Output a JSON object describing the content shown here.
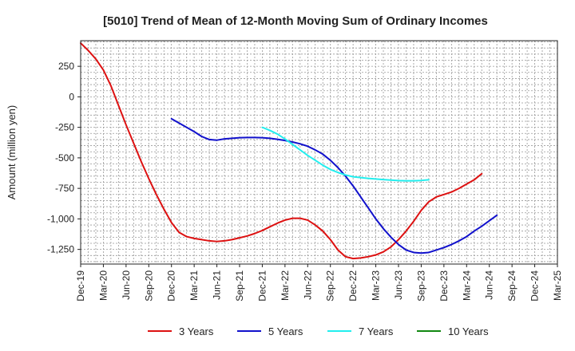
{
  "chart_data": {
    "type": "line",
    "title": "[5010]  Trend of Mean of 12-Month Moving Sum of Ordinary Incomes",
    "xlabel": "",
    "ylabel": "Amount (million yen)",
    "ylim": [
      -1370,
      460
    ],
    "yticks": [
      250,
      0,
      -250,
      -500,
      -750,
      -1000,
      -1250
    ],
    "ytick_labels": [
      "250",
      "0",
      "-250",
      "-500",
      "-750",
      "-1,000",
      "-1,250"
    ],
    "xtick_labels": [
      "Dec-19",
      "Mar-20",
      "Jun-20",
      "Sep-20",
      "Dec-20",
      "Mar-21",
      "Jun-21",
      "Sep-21",
      "Dec-21",
      "Mar-22",
      "Jun-22",
      "Sep-22",
      "Dec-22",
      "Mar-23",
      "Jun-23",
      "Sep-23",
      "Dec-23",
      "Mar-24",
      "Jun-24",
      "Sep-24",
      "Dec-24",
      "Mar-25"
    ],
    "grid": true,
    "legend_position": "bottom",
    "series": [
      {
        "name": "3 Years",
        "color": "#dd1111",
        "points": [
          [
            0,
            440
          ],
          [
            1,
            380
          ],
          [
            2,
            310
          ],
          [
            3,
            220
          ],
          [
            4,
            90
          ],
          [
            5,
            -70
          ],
          [
            6,
            -230
          ],
          [
            7,
            -380
          ],
          [
            8,
            -530
          ],
          [
            9,
            -670
          ],
          [
            10,
            -800
          ],
          [
            11,
            -920
          ],
          [
            12,
            -1030
          ],
          [
            13,
            -1110
          ],
          [
            14,
            -1145
          ],
          [
            15,
            -1160
          ],
          [
            16,
            -1170
          ],
          [
            17,
            -1180
          ],
          [
            18,
            -1185
          ],
          [
            19,
            -1180
          ],
          [
            20,
            -1170
          ],
          [
            21,
            -1155
          ],
          [
            22,
            -1140
          ],
          [
            23,
            -1120
          ],
          [
            24,
            -1095
          ],
          [
            25,
            -1065
          ],
          [
            26,
            -1035
          ],
          [
            27,
            -1010
          ],
          [
            28,
            -995
          ],
          [
            29,
            -995
          ],
          [
            30,
            -1010
          ],
          [
            31,
            -1050
          ],
          [
            32,
            -1100
          ],
          [
            33,
            -1170
          ],
          [
            34,
            -1255
          ],
          [
            35,
            -1310
          ],
          [
            36,
            -1325
          ],
          [
            37,
            -1320
          ],
          [
            38,
            -1310
          ],
          [
            39,
            -1295
          ],
          [
            40,
            -1270
          ],
          [
            41,
            -1230
          ],
          [
            42,
            -1170
          ],
          [
            43,
            -1100
          ],
          [
            44,
            -1020
          ],
          [
            45,
            -930
          ],
          [
            46,
            -860
          ],
          [
            47,
            -820
          ],
          [
            48,
            -800
          ],
          [
            49,
            -780
          ],
          [
            50,
            -750
          ],
          [
            51,
            -715
          ],
          [
            52,
            -680
          ],
          [
            53,
            -630
          ]
        ]
      },
      {
        "name": "5 Years",
        "color": "#1111cc",
        "points": [
          [
            12,
            -180
          ],
          [
            13,
            -215
          ],
          [
            14,
            -250
          ],
          [
            15,
            -285
          ],
          [
            16,
            -325
          ],
          [
            17,
            -350
          ],
          [
            18,
            -355
          ],
          [
            19,
            -345
          ],
          [
            20,
            -340
          ],
          [
            21,
            -335
          ],
          [
            22,
            -333
          ],
          [
            23,
            -333
          ],
          [
            24,
            -335
          ],
          [
            25,
            -340
          ],
          [
            26,
            -348
          ],
          [
            27,
            -358
          ],
          [
            28,
            -370
          ],
          [
            29,
            -385
          ],
          [
            30,
            -405
          ],
          [
            31,
            -435
          ],
          [
            32,
            -470
          ],
          [
            33,
            -520
          ],
          [
            34,
            -580
          ],
          [
            35,
            -650
          ],
          [
            36,
            -730
          ],
          [
            37,
            -820
          ],
          [
            38,
            -910
          ],
          [
            39,
            -1000
          ],
          [
            40,
            -1080
          ],
          [
            41,
            -1150
          ],
          [
            42,
            -1210
          ],
          [
            43,
            -1255
          ],
          [
            44,
            -1275
          ],
          [
            45,
            -1280
          ],
          [
            46,
            -1275
          ],
          [
            47,
            -1255
          ],
          [
            48,
            -1235
          ],
          [
            49,
            -1210
          ],
          [
            50,
            -1180
          ],
          [
            51,
            -1145
          ],
          [
            52,
            -1100
          ],
          [
            53,
            -1060
          ],
          [
            54,
            -1015
          ],
          [
            55,
            -970
          ]
        ]
      },
      {
        "name": "7 Years",
        "color": "#22eeee",
        "points": [
          [
            24,
            -250
          ],
          [
            25,
            -275
          ],
          [
            26,
            -305
          ],
          [
            27,
            -345
          ],
          [
            28,
            -390
          ],
          [
            29,
            -435
          ],
          [
            30,
            -480
          ],
          [
            31,
            -520
          ],
          [
            32,
            -560
          ],
          [
            33,
            -595
          ],
          [
            34,
            -620
          ],
          [
            35,
            -640
          ],
          [
            36,
            -655
          ],
          [
            37,
            -662
          ],
          [
            38,
            -668
          ],
          [
            39,
            -673
          ],
          [
            40,
            -678
          ],
          [
            41,
            -682
          ],
          [
            42,
            -686
          ],
          [
            43,
            -688
          ],
          [
            44,
            -688
          ],
          [
            45,
            -685
          ],
          [
            46,
            -680
          ]
        ]
      },
      {
        "name": "10 Years",
        "color": "#118811",
        "points": []
      }
    ]
  }
}
